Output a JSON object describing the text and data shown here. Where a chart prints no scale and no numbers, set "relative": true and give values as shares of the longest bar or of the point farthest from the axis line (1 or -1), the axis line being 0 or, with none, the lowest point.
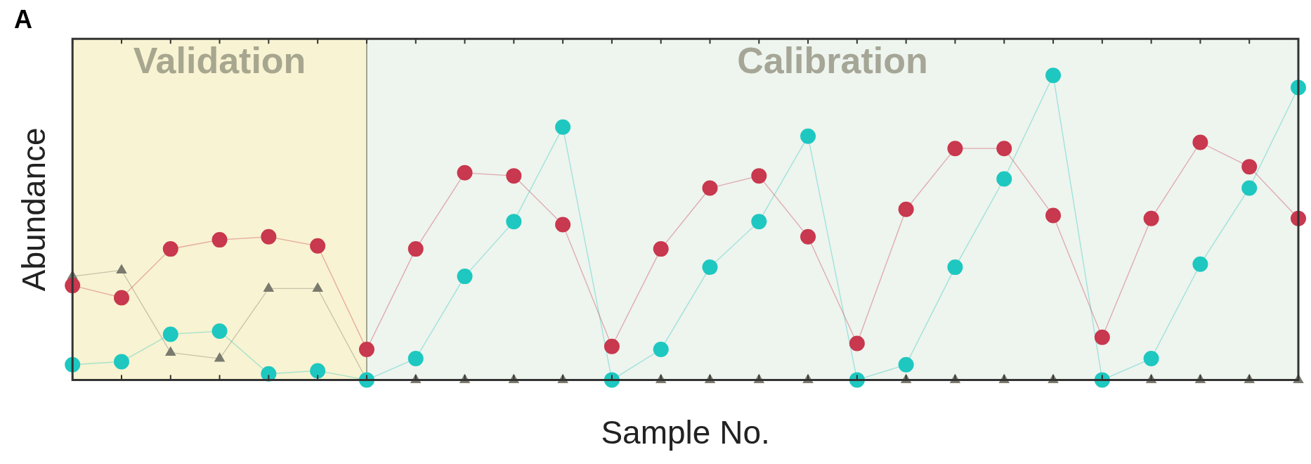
{
  "chart_data": {
    "type": "line",
    "title": "A",
    "xlabel": "Sample No.",
    "ylabel": "Abundance",
    "relative": true,
    "legend": false,
    "categories": [
      null,
      null,
      null,
      null,
      null,
      null,
      null,
      null,
      null,
      null,
      null,
      null,
      null,
      null,
      null,
      null,
      null,
      null,
      null,
      null,
      null,
      null,
      null,
      null,
      null,
      null
    ],
    "annotations": [
      "Validation",
      "Calibration"
    ],
    "series": [
      {
        "color": "#c8384e",
        "marker": "circle",
        "values": [
          0.31,
          0.27,
          0.43,
          0.46,
          0.47,
          0.44,
          0.1,
          0.43,
          0.68,
          0.67,
          0.51,
          0.11,
          0.43,
          0.63,
          0.67,
          0.47,
          0.12,
          0.56,
          0.76,
          0.76,
          0.54,
          0.14,
          0.53,
          0.78,
          0.7,
          0.53
        ]
      },
      {
        "color": "#1ec8c0",
        "marker": "circle",
        "values": [
          0.05,
          0.06,
          0.15,
          0.16,
          0.02,
          0.03,
          0,
          0.07,
          0.34,
          0.52,
          0.83,
          0,
          0.1,
          0.37,
          0.52,
          0.8,
          0,
          0.05,
          0.37,
          0.66,
          1,
          0,
          0.07,
          0.38,
          0.63,
          0.96
        ]
      },
      {
        "color": "#7a7a6e",
        "marker": "triangle",
        "values": [
          0.34,
          0.36,
          0.09,
          0.07,
          0.3,
          0.3,
          0,
          0,
          0,
          0,
          0,
          0,
          0,
          0,
          0,
          0,
          0,
          0,
          0,
          0,
          0,
          0,
          0,
          0,
          0,
          0
        ]
      }
    ]
  }
}
